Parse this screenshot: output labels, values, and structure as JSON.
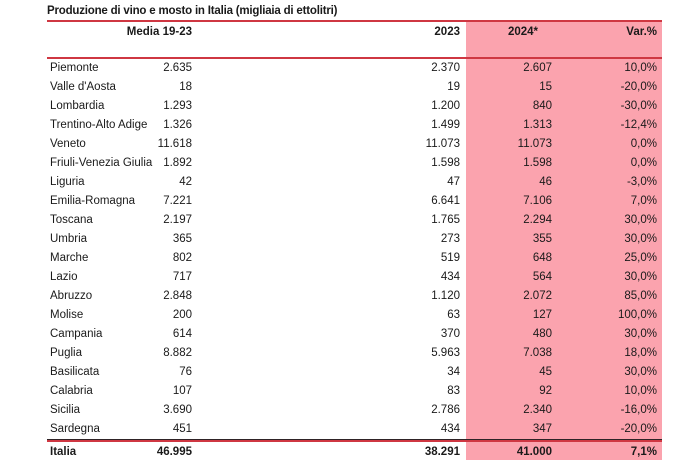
{
  "title": "Produzione di vino e mosto in Italia (migliaia di ettolitri)",
  "colors": {
    "pink_highlight": "#fba3ae",
    "red_line": "#cf3742",
    "dark_line": "#2e2326",
    "text": "#1a1a1a"
  },
  "chart_data": {
    "type": "table",
    "title": "Produzione di vino e mosto in Italia (migliaia di ettolitri)",
    "columns": [
      "",
      "Media 19-23",
      "2023",
      "2024*",
      "Var.%"
    ],
    "highlighted_columns": [
      "2024*",
      "Var.%"
    ],
    "rows": [
      {
        "region": "Piemonte",
        "media": "2.635",
        "y2023": "2.370",
        "y2024": "2.607",
        "var": "10,0%"
      },
      {
        "region": "Valle d'Aosta",
        "media": "18",
        "y2023": "19",
        "y2024": "15",
        "var": "-20,0%"
      },
      {
        "region": "Lombardia",
        "media": "1.293",
        "y2023": "1.200",
        "y2024": "840",
        "var": "-30,0%"
      },
      {
        "region": "Trentino-Alto Adige",
        "media": "1.326",
        "y2023": "1.499",
        "y2024": "1.313",
        "var": "-12,4%"
      },
      {
        "region": "Veneto",
        "media": "11.618",
        "y2023": "11.073",
        "y2024": "11.073",
        "var": "0,0%"
      },
      {
        "region": "Friuli-Venezia Giulia",
        "media": "1.892",
        "y2023": "1.598",
        "y2024": "1.598",
        "var": "0,0%"
      },
      {
        "region": "Liguria",
        "media": "42",
        "y2023": "47",
        "y2024": "46",
        "var": "-3,0%"
      },
      {
        "region": "Emilia-Romagna",
        "media": "7.221",
        "y2023": "6.641",
        "y2024": "7.106",
        "var": "7,0%"
      },
      {
        "region": "Toscana",
        "media": "2.197",
        "y2023": "1.765",
        "y2024": "2.294",
        "var": "30,0%"
      },
      {
        "region": "Umbria",
        "media": "365",
        "y2023": "273",
        "y2024": "355",
        "var": "30,0%"
      },
      {
        "region": "Marche",
        "media": "802",
        "y2023": "519",
        "y2024": "648",
        "var": "25,0%"
      },
      {
        "region": "Lazio",
        "media": "717",
        "y2023": "434",
        "y2024": "564",
        "var": "30,0%"
      },
      {
        "region": "Abruzzo",
        "media": "2.848",
        "y2023": "1.120",
        "y2024": "2.072",
        "var": "85,0%"
      },
      {
        "region": "Molise",
        "media": "200",
        "y2023": "63",
        "y2024": "127",
        "var": "100,0%"
      },
      {
        "region": "Campania",
        "media": "614",
        "y2023": "370",
        "y2024": "480",
        "var": "30,0%"
      },
      {
        "region": "Puglia",
        "media": "8.882",
        "y2023": "5.963",
        "y2024": "7.038",
        "var": "18,0%"
      },
      {
        "region": "Basilicata",
        "media": "76",
        "y2023": "34",
        "y2024": "45",
        "var": "30,0%"
      },
      {
        "region": "Calabria",
        "media": "107",
        "y2023": "83",
        "y2024": "92",
        "var": "10,0%"
      },
      {
        "region": "Sicilia",
        "media": "3.690",
        "y2023": "2.786",
        "y2024": "2.340",
        "var": "-16,0%"
      },
      {
        "region": "Sardegna",
        "media": "451",
        "y2023": "434",
        "y2024": "347",
        "var": "-20,0%"
      }
    ],
    "total": {
      "region": "Italia",
      "media": "46.995",
      "y2023": "38.291",
      "y2024": "41.000",
      "var": "7,1%"
    }
  }
}
